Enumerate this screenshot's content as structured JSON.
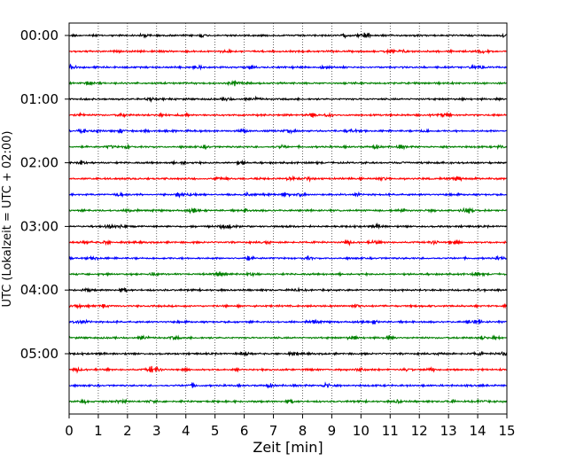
{
  "chart_data": {
    "type": "line",
    "title": "",
    "xlabel": "Zeit  [min]",
    "ylabel": "UTC (Lokalzeit = UTC + 02:00)",
    "xlim": [
      0,
      15
    ],
    "x_ticks": [
      "0",
      "1",
      "2",
      "3",
      "4",
      "5",
      "6",
      "7",
      "8",
      "9",
      "10",
      "11",
      "12",
      "13",
      "14",
      "15"
    ],
    "y_ticks": [
      "00:00",
      "01:00",
      "02:00",
      "03:00",
      "04:00",
      "05:00"
    ],
    "grid": "vertical dotted lines at each minute",
    "legend": "none",
    "trace_interval_minutes": 15,
    "trace_count": 24,
    "trace_colors": [
      "#000000",
      "#ff0000",
      "#0000ff",
      "#008000"
    ],
    "trace_start_times": [
      "00:00",
      "00:15",
      "00:30",
      "00:45",
      "01:00",
      "01:15",
      "01:30",
      "01:45",
      "02:00",
      "02:15",
      "02:30",
      "02:45",
      "03:00",
      "03:15",
      "03:30",
      "03:45",
      "04:00",
      "04:15",
      "04:30",
      "04:45",
      "05:00",
      "05:15",
      "05:30",
      "05:45"
    ]
  }
}
